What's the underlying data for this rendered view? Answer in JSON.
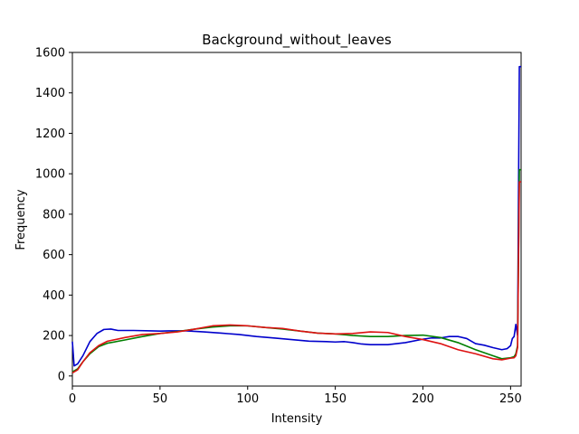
{
  "chart_data": {
    "type": "line",
    "title": "Background_without_leaves",
    "xlabel": "Intensity",
    "ylabel": "Frequency",
    "xlim": [
      0,
      256
    ],
    "ylim": [
      -50,
      1600
    ],
    "xticks": [
      0,
      50,
      100,
      150,
      200,
      250
    ],
    "yticks": [
      0,
      200,
      400,
      600,
      800,
      1000,
      1200,
      1400,
      1600
    ],
    "grid": false,
    "legend": "none",
    "series": [
      {
        "color": "#0000cc",
        "points": [
          [
            0,
            170
          ],
          [
            1,
            50
          ],
          [
            3,
            60
          ],
          [
            6,
            100
          ],
          [
            10,
            170
          ],
          [
            14,
            210
          ],
          [
            18,
            230
          ],
          [
            22,
            232
          ],
          [
            26,
            225
          ],
          [
            35,
            225
          ],
          [
            45,
            223
          ],
          [
            50,
            222
          ],
          [
            55,
            223
          ],
          [
            65,
            223
          ],
          [
            75,
            218
          ],
          [
            85,
            212
          ],
          [
            95,
            205
          ],
          [
            105,
            195
          ],
          [
            115,
            188
          ],
          [
            125,
            180
          ],
          [
            135,
            172
          ],
          [
            145,
            170
          ],
          [
            150,
            168
          ],
          [
            155,
            170
          ],
          [
            160,
            165
          ],
          [
            165,
            158
          ],
          [
            170,
            155
          ],
          [
            180,
            155
          ],
          [
            190,
            165
          ],
          [
            200,
            182
          ],
          [
            205,
            188
          ],
          [
            210,
            188
          ],
          [
            215,
            195
          ],
          [
            220,
            195
          ],
          [
            225,
            185
          ],
          [
            230,
            160
          ],
          [
            235,
            152
          ],
          [
            240,
            140
          ],
          [
            245,
            130
          ],
          [
            248,
            135
          ],
          [
            250,
            150
          ],
          [
            251,
            185
          ],
          [
            252,
            195
          ],
          [
            253,
            255
          ],
          [
            254,
            200
          ],
          [
            255,
            1530
          ],
          [
            256,
            1530
          ]
        ]
      },
      {
        "color": "#007f00",
        "points": [
          [
            0,
            20
          ],
          [
            3,
            35
          ],
          [
            6,
            70
          ],
          [
            10,
            110
          ],
          [
            15,
            145
          ],
          [
            20,
            162
          ],
          [
            30,
            178
          ],
          [
            40,
            195
          ],
          [
            50,
            210
          ],
          [
            60,
            220
          ],
          [
            70,
            232
          ],
          [
            80,
            242
          ],
          [
            90,
            248
          ],
          [
            100,
            248
          ],
          [
            110,
            240
          ],
          [
            120,
            232
          ],
          [
            130,
            222
          ],
          [
            140,
            212
          ],
          [
            150,
            208
          ],
          [
            160,
            200
          ],
          [
            170,
            195
          ],
          [
            180,
            195
          ],
          [
            190,
            200
          ],
          [
            200,
            202
          ],
          [
            210,
            190
          ],
          [
            220,
            165
          ],
          [
            230,
            130
          ],
          [
            240,
            100
          ],
          [
            245,
            85
          ],
          [
            250,
            90
          ],
          [
            252,
            95
          ],
          [
            253,
            110
          ],
          [
            254,
            150
          ],
          [
            255,
            1020
          ],
          [
            256,
            1020
          ]
        ]
      },
      {
        "color": "#dd1111",
        "points": [
          [
            0,
            15
          ],
          [
            3,
            30
          ],
          [
            6,
            70
          ],
          [
            10,
            115
          ],
          [
            15,
            150
          ],
          [
            20,
            172
          ],
          [
            30,
            190
          ],
          [
            40,
            205
          ],
          [
            50,
            210
          ],
          [
            60,
            218
          ],
          [
            70,
            232
          ],
          [
            80,
            248
          ],
          [
            90,
            252
          ],
          [
            100,
            248
          ],
          [
            110,
            240
          ],
          [
            120,
            235
          ],
          [
            130,
            222
          ],
          [
            140,
            212
          ],
          [
            150,
            208
          ],
          [
            160,
            210
          ],
          [
            170,
            218
          ],
          [
            180,
            215
          ],
          [
            190,
            195
          ],
          [
            200,
            180
          ],
          [
            210,
            160
          ],
          [
            220,
            130
          ],
          [
            230,
            110
          ],
          [
            240,
            85
          ],
          [
            245,
            80
          ],
          [
            250,
            88
          ],
          [
            252,
            90
          ],
          [
            253,
            100
          ],
          [
            254,
            140
          ],
          [
            255,
            960
          ],
          [
            256,
            960
          ]
        ]
      }
    ]
  }
}
